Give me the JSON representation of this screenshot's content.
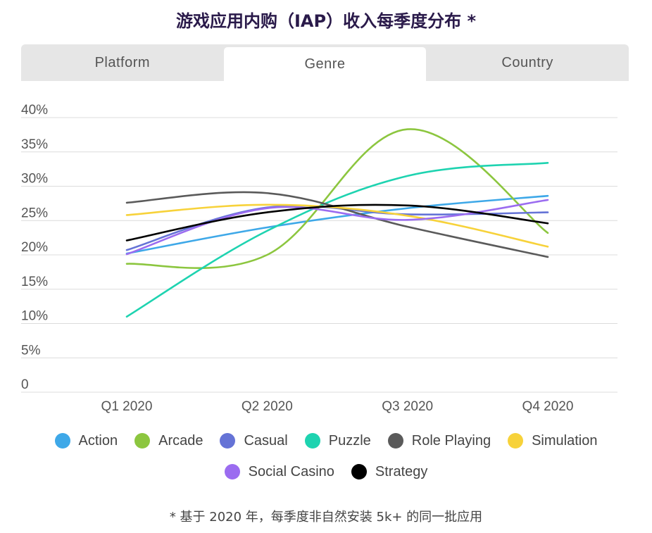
{
  "title": "游戏应用内购（IAP）收入每季度分布 *",
  "tabs": [
    {
      "label": "Platform",
      "active": false
    },
    {
      "label": "Genre",
      "active": true
    },
    {
      "label": "Country",
      "active": false
    }
  ],
  "footnote": "* 基于 2020 年，每季度非自然安装 5k+ 的同一批应用",
  "chart_data": {
    "type": "line",
    "title": "",
    "xlabel": "",
    "ylabel": "",
    "categories": [
      "Q1 2020",
      "Q2 2020",
      "Q3 2020",
      "Q4 2020"
    ],
    "ylim": [
      0,
      40
    ],
    "yticks": [
      0,
      5,
      10,
      15,
      20,
      25,
      30,
      35,
      40
    ],
    "ytick_labels": [
      "0",
      "5%",
      "10%",
      "15%",
      "20%",
      "25%",
      "30%",
      "35%",
      "40%"
    ],
    "grid": true,
    "legend_position": "bottom",
    "series": [
      {
        "name": "Action",
        "color": "#3ea8e8",
        "values": [
          20.2,
          24.0,
          26.8,
          28.6
        ]
      },
      {
        "name": "Arcade",
        "color": "#8cc63f",
        "values": [
          18.7,
          20.0,
          38.3,
          23.2
        ]
      },
      {
        "name": "Casual",
        "color": "#6573d6",
        "values": [
          20.7,
          26.9,
          25.9,
          26.2
        ]
      },
      {
        "name": "Puzzle",
        "color": "#1ed3b0",
        "values": [
          11.0,
          23.5,
          31.5,
          33.4
        ]
      },
      {
        "name": "Role Playing",
        "color": "#5a5a5a",
        "values": [
          27.6,
          29.0,
          24.1,
          19.7
        ]
      },
      {
        "name": "Simulation",
        "color": "#f7d23a",
        "values": [
          25.8,
          27.3,
          25.7,
          21.2
        ]
      },
      {
        "name": "Social Casino",
        "color": "#9b6cf0",
        "values": [
          20.1,
          26.8,
          25.1,
          28.0
        ]
      },
      {
        "name": "Strategy",
        "color": "#000000",
        "values": [
          22.1,
          26.2,
          27.2,
          24.6
        ]
      }
    ]
  }
}
